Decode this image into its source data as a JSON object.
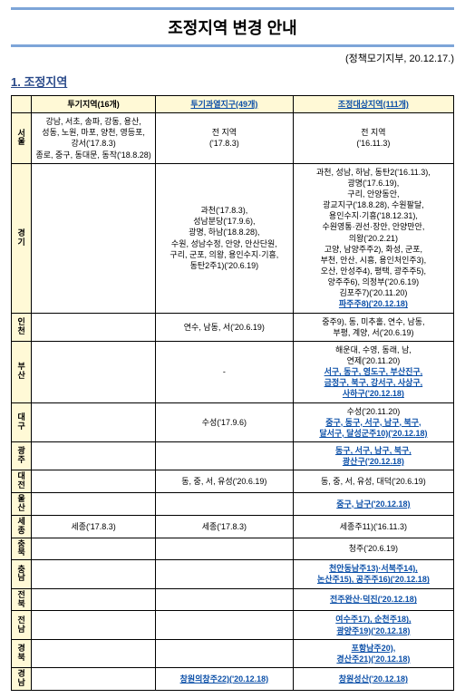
{
  "title": "조정지역 변경 안내",
  "source": "(정책모기지부, 20.12.17.)",
  "section1": "1. 조정지역",
  "headers": {
    "col0": "",
    "col1": "투기지역(16개)",
    "col2": "투기과열지구(49개)",
    "col3": "조정대상지역(111개)"
  },
  "rows": [
    {
      "region": "서울",
      "a": "강남, 서초, 송파, 강동, 용산,\n성동, 노원, 마포, 양천, 영등포,\n강서('17.8.3)\n종로, 중구, 동대문, 동작('18.8.28)",
      "b": "전 지역\n('17.8.3)",
      "c": "전 지역\n('16.11.3)"
    },
    {
      "region": "경기",
      "a": "",
      "b": "과천('17.8.3),\n성남분당('17.9.6),\n광명, 하남('18.8.28),\n수원, 성남수정, 안양, 안산단원,\n구리, 군포, 의왕, 용인수지·기흥,\n동탄2주1)('20.6.19)",
      "c": "과천, 성남, 하남, 동탄2('16.11.3),\n광명('17.6.19),\n구리, 안양동안,\n광교지구('18.8.28), 수원팔달,\n용인수지·기흥('18.12.31),\n수원영통·권선·장안, 안양만안,\n의왕('20.2.21)\n고양, 남양주주2), 화성, 군포,\n부천, 안산, 시흥, 용인처인주3),\n오산, 안성주4), 평택, 광주주5),\n양주주6), 의정부('20.6.19)\n김포주7)('20.11.20)",
      "c_link": "파주주8)('20.12.18)"
    },
    {
      "region": "인천",
      "a": "",
      "b": "연수, 남동, 서('20.6.19)",
      "c": "중주9), 동, 미추홀, 연수, 남동,\n부평, 계양, 서('20.6.19)"
    },
    {
      "region": "부산",
      "a": "",
      "b": "-",
      "c": "해운대, 수영, 동래, 남,\n연제('20.11.20)",
      "c_link": "서구, 동구, 영도구, 부산진구,\n금정구, 북구, 강서구, 사상구,\n사하구('20.12.18)"
    },
    {
      "region": "대구",
      "a": "",
      "b": "수성('17.9.6)",
      "c": "수성('20.11.20)",
      "c_link": "중구, 동구, 서구, 남구, 북구,\n달서구, 달성군주10)('20.12.18)"
    },
    {
      "region": "광주",
      "a": "",
      "b": "",
      "c_link": "동구, 서구, 남구, 북구,\n광산구('20.12.18)"
    },
    {
      "region": "대전",
      "a": "",
      "b": "동, 중, 서, 유성('20.6.19)",
      "c": "동, 중, 서, 유성, 대덕('20.6.19)"
    },
    {
      "region": "울산",
      "a": "",
      "b": "",
      "c_link": "중구, 남구('20.12.18)"
    },
    {
      "region": "세종",
      "a": "세종('17.8.3)",
      "b": "세종('17.8.3)",
      "c": "세종주11)('16.11.3)"
    },
    {
      "region": "충북",
      "a": "",
      "b": "",
      "c": "청주('20.6.19)"
    },
    {
      "region": "충남",
      "a": "",
      "b": "",
      "c_link": "천안동남주13)·서북주14),\n논산주15), 공주주16)('20.12.18)"
    },
    {
      "region": "전북",
      "a": "",
      "b": "",
      "c_link": "전주완산·덕진('20.12.18)"
    },
    {
      "region": "전남",
      "a": "",
      "b": "",
      "c_link": "여수주17), 순천주18),\n광양주19)('20.12.18)"
    },
    {
      "region": "경북",
      "a": "",
      "b": "",
      "c_link": "포항남주20),\n경산주21)('20.12.18)"
    },
    {
      "region": "경남",
      "a": "",
      "b_link": "창원의창주22)('20.12.18)",
      "c_link": "창원성산('20.12.18)"
    }
  ]
}
